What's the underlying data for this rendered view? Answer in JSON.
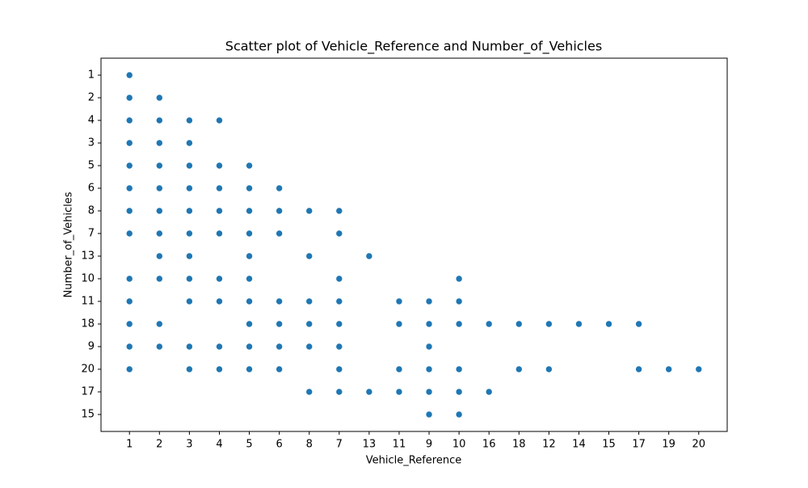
{
  "chart_data": {
    "type": "scatter",
    "title": "Scatter plot of Vehicle_Reference and Number_of_Vehicles",
    "xlabel": "Vehicle_Reference",
    "ylabel": "Number_of_Vehicles",
    "color": "#1f77b4",
    "xcategories": [
      1,
      2,
      3,
      4,
      5,
      6,
      8,
      7,
      13,
      11,
      9,
      10,
      16,
      18,
      12,
      14,
      15,
      17,
      19,
      20
    ],
    "ycategories": [
      1,
      2,
      4,
      3,
      5,
      6,
      8,
      7,
      13,
      10,
      11,
      18,
      9,
      20,
      17,
      15
    ],
    "x": [
      1,
      1,
      1,
      1,
      1,
      1,
      1,
      1,
      1,
      1,
      1,
      1,
      1,
      2,
      2,
      2,
      2,
      2,
      2,
      2,
      2,
      2,
      2,
      2,
      3,
      3,
      3,
      3,
      3,
      3,
      3,
      3,
      3,
      3,
      3,
      4,
      4,
      4,
      4,
      4,
      4,
      4,
      4,
      4,
      5,
      5,
      5,
      5,
      5,
      5,
      5,
      5,
      5,
      5,
      6,
      6,
      6,
      6,
      6,
      6,
      6,
      8,
      8,
      8,
      8,
      8,
      8,
      7,
      7,
      7,
      7,
      7,
      7,
      7,
      7,
      13,
      13,
      11,
      11,
      11,
      11,
      9,
      9,
      9,
      9,
      9,
      9,
      10,
      10,
      10,
      10,
      10,
      10,
      16,
      16,
      18,
      18,
      12,
      12,
      14,
      15,
      17,
      17,
      19,
      20
    ],
    "y": [
      1,
      2,
      4,
      3,
      5,
      6,
      8,
      7,
      10,
      11,
      18,
      9,
      20,
      2,
      4,
      3,
      5,
      6,
      8,
      7,
      13,
      10,
      18,
      9,
      4,
      3,
      5,
      6,
      8,
      7,
      13,
      10,
      11,
      9,
      20,
      4,
      5,
      6,
      8,
      7,
      10,
      11,
      9,
      20,
      5,
      6,
      8,
      7,
      13,
      10,
      11,
      18,
      9,
      20,
      6,
      8,
      7,
      11,
      18,
      9,
      20,
      8,
      13,
      11,
      18,
      9,
      17,
      8,
      7,
      10,
      11,
      18,
      9,
      20,
      17,
      13,
      17,
      11,
      18,
      20,
      17,
      11,
      18,
      9,
      20,
      17,
      15,
      10,
      11,
      18,
      20,
      17,
      15,
      18,
      17,
      18,
      20,
      18,
      20,
      18,
      18,
      18,
      20,
      20,
      20
    ]
  }
}
